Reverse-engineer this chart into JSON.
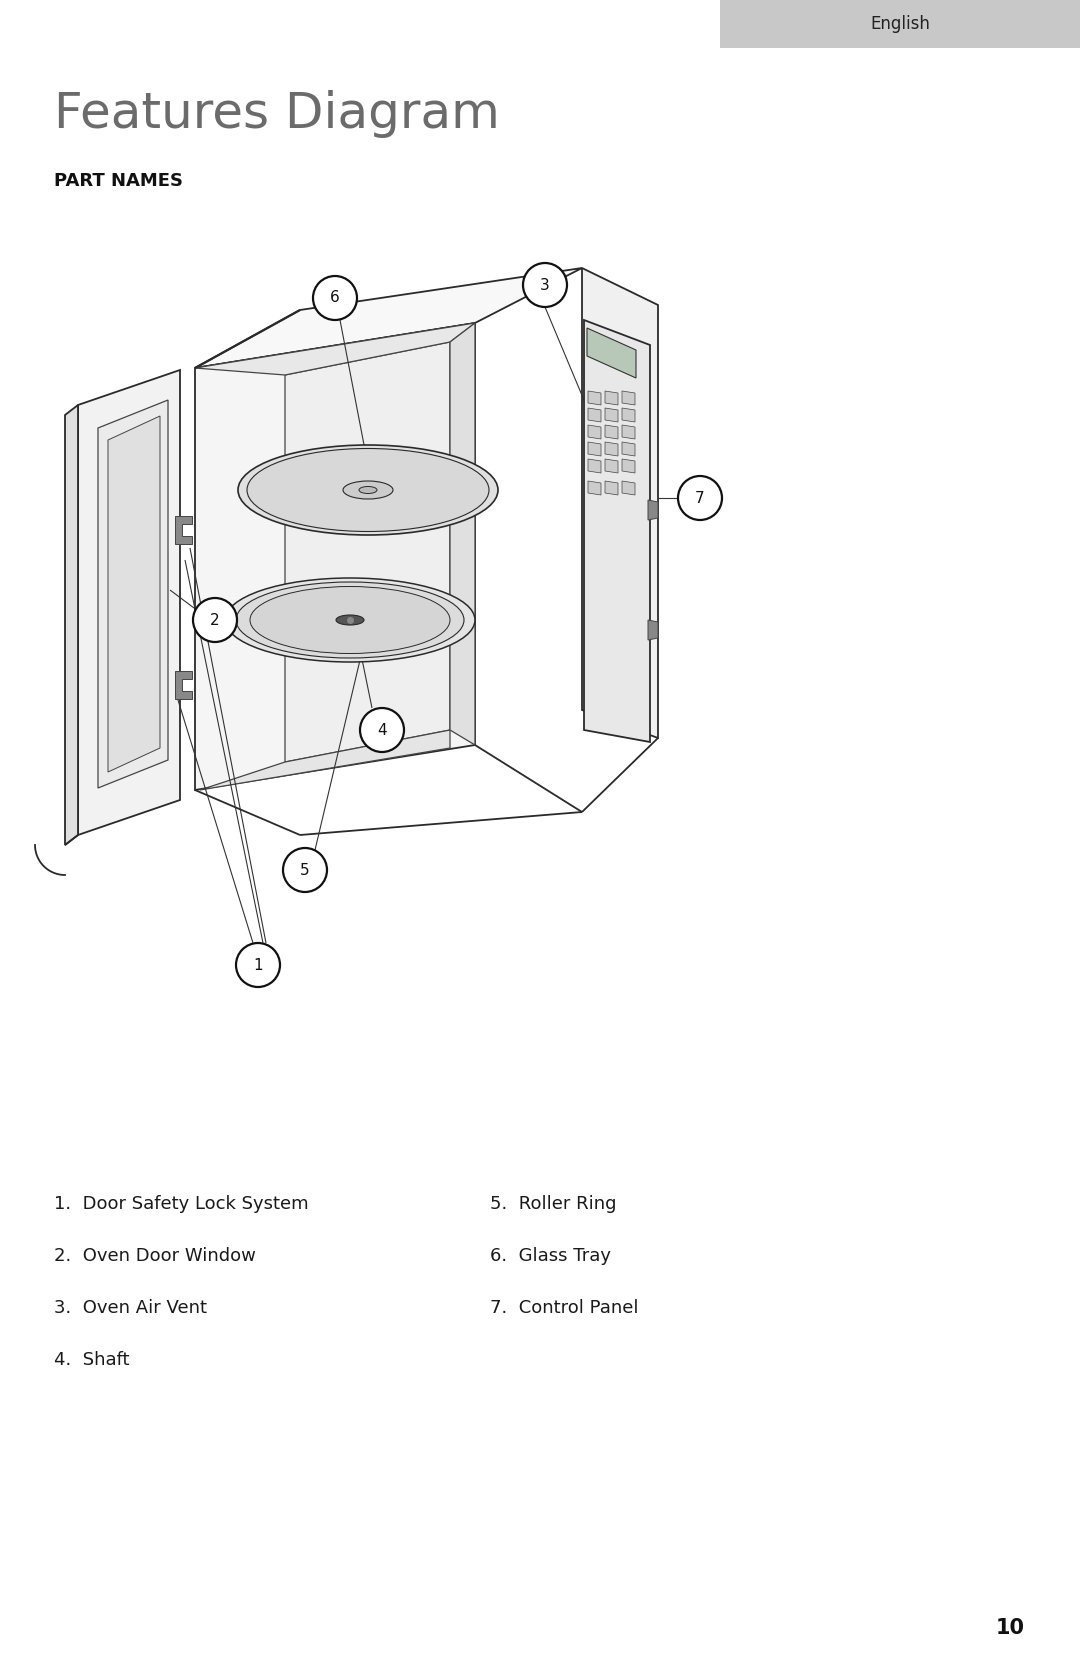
{
  "title": "Features Diagram",
  "subtitle": "PART NAMES",
  "header_text": "English",
  "header_bg": "#c8c8c8",
  "page_number": "10",
  "part_names_left": [
    "1.  Door Safety Lock System",
    "2.  Oven Door Window",
    "3.  Oven Air Vent",
    "4.  Shaft"
  ],
  "part_names_right": [
    "5.  Roller Ring",
    "6.  Glass Tray",
    "7.  Control Panel"
  ],
  "bg_color": "#ffffff",
  "title_color": "#6b6b6b",
  "subtitle_color": "#111111",
  "text_color": "#1a1a1a",
  "lc": "#2a2a2a",
  "lc_thin": "#444444"
}
